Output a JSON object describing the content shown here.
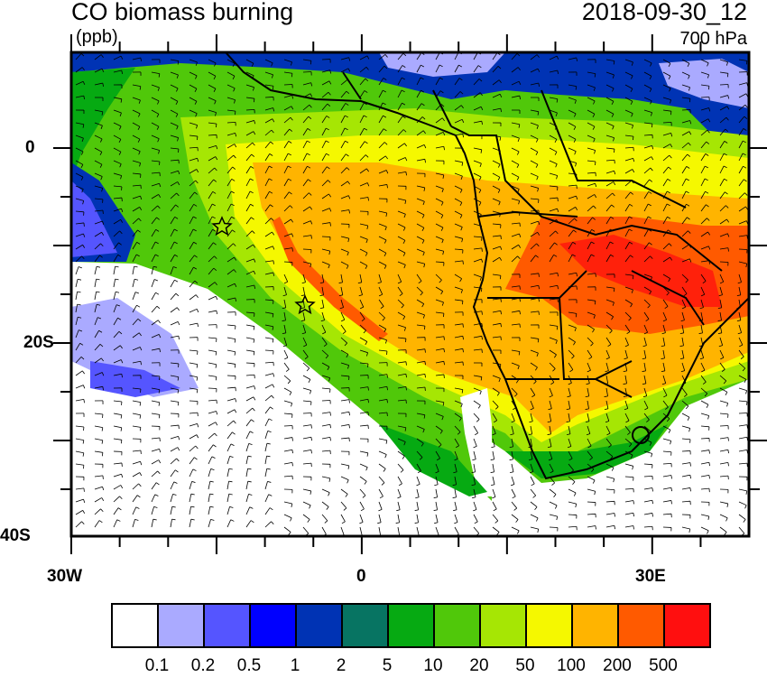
{
  "header": {
    "title": "CO biomass burning",
    "datetime": "2018-09-30_12",
    "units": "(ppb)",
    "level": "700 hPa"
  },
  "axes": {
    "x_ticks": [
      "30W",
      "0",
      "30E"
    ],
    "y_ticks": [
      "0",
      "20S",
      "40S"
    ]
  },
  "colorbar": {
    "colors": [
      "#ffffff",
      "#aaaaff",
      "#5555ff",
      "#0000ff",
      "#0033b4",
      "#077462",
      "#06aa12",
      "#50c80a",
      "#a6e604",
      "#f5f800",
      "#ffb400",
      "#ff5a00",
      "#ff0f0f"
    ],
    "labels": [
      "0.1",
      "0.2",
      "0.5",
      "1",
      "2",
      "5",
      "10",
      "20",
      "50",
      "100",
      "200",
      "500"
    ]
  },
  "markers": [
    "star",
    "star"
  ]
}
